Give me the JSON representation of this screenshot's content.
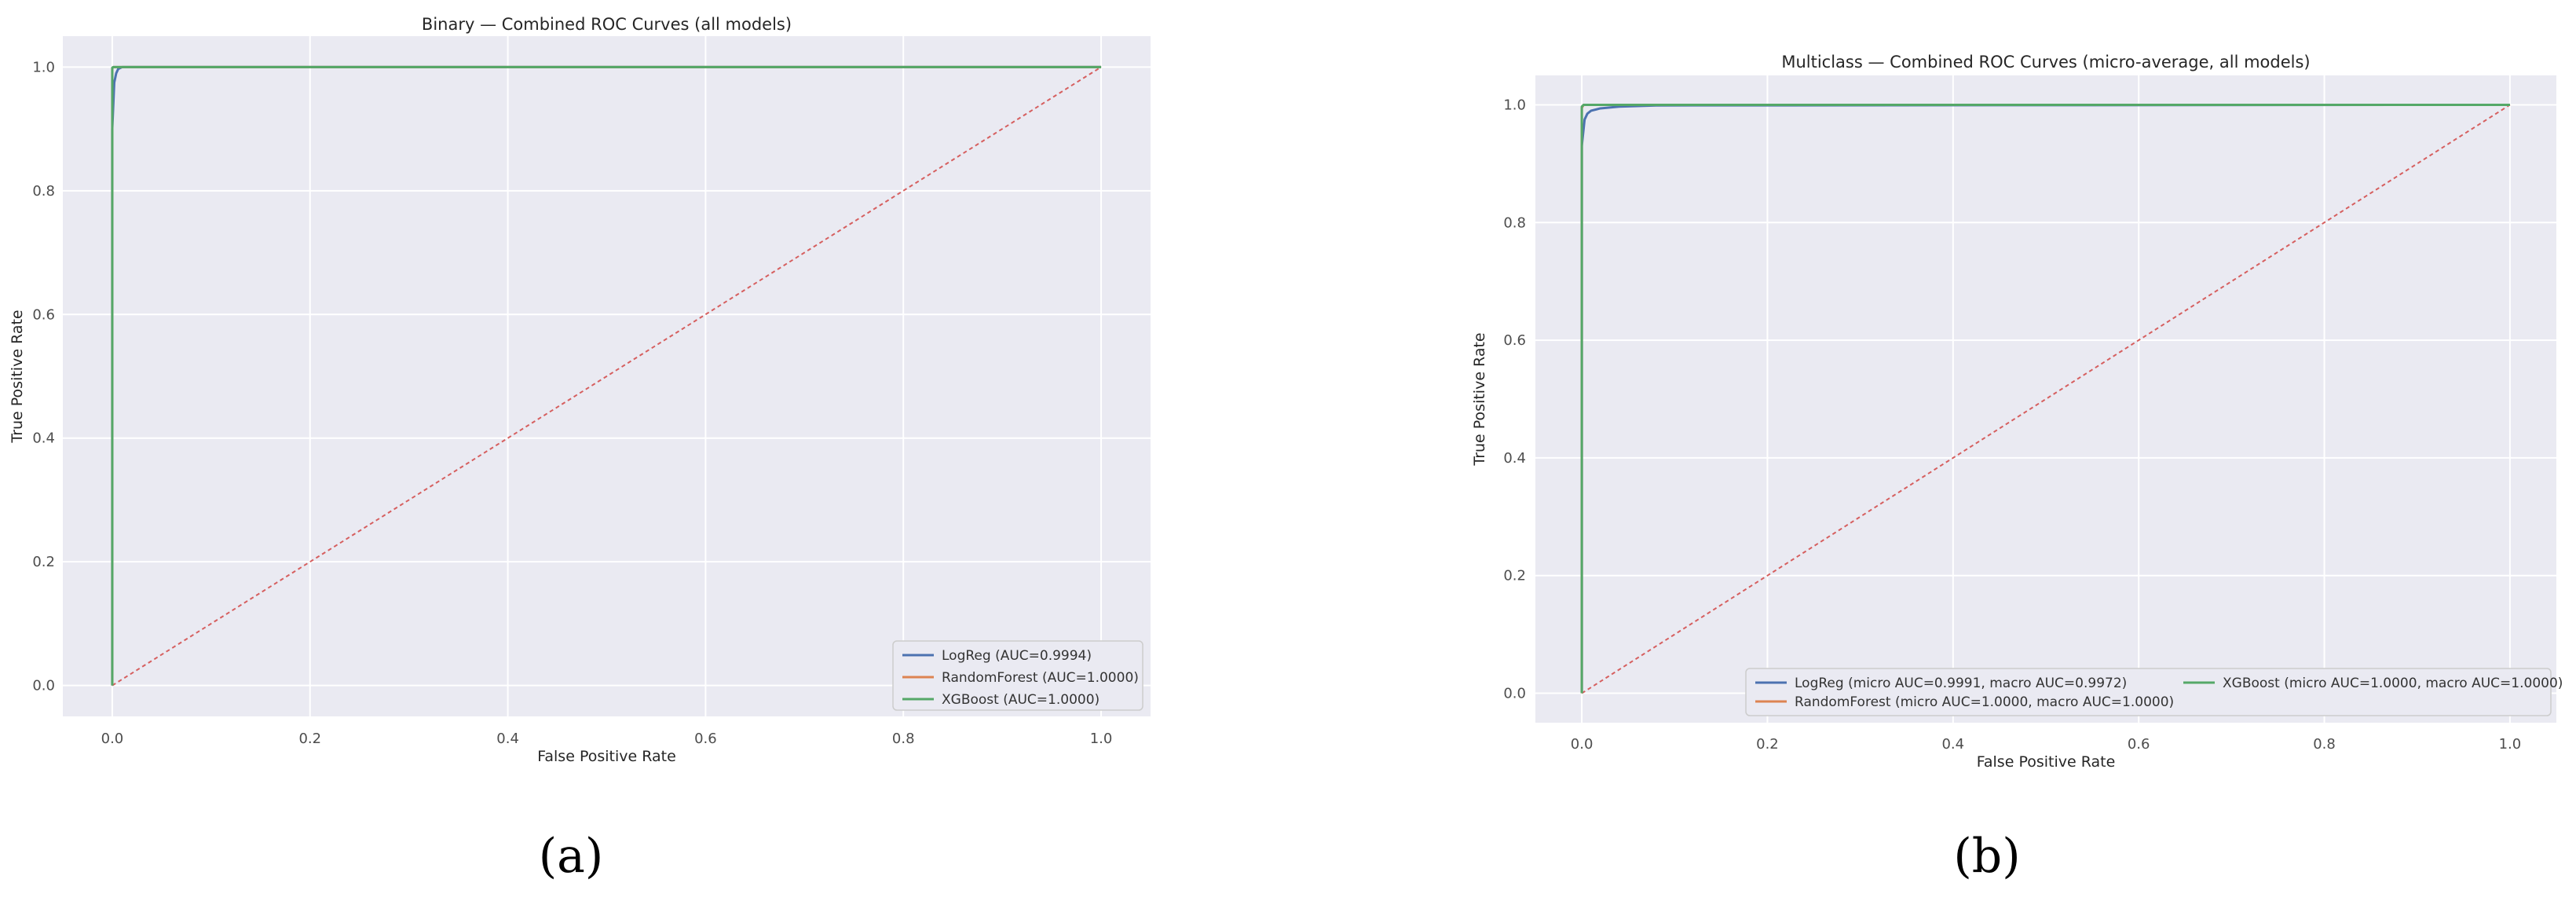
{
  "chart_data": [
    {
      "type": "line",
      "title": "Binary — Combined ROC Curves (all models)",
      "xlabel": "False Positive Rate",
      "ylabel": "True Positive Rate",
      "xlim": [
        -0.05,
        1.05
      ],
      "ylim": [
        -0.05,
        1.05
      ],
      "xticks": [
        "0.0",
        "0.2",
        "0.4",
        "0.6",
        "0.8",
        "1.0"
      ],
      "yticks": [
        "0.0",
        "0.2",
        "0.4",
        "0.6",
        "0.8",
        "1.0"
      ],
      "grid": true,
      "legend_position": "lower-right",
      "legend_columns": 1,
      "panel_label": "(a)",
      "series": [
        {
          "name": "LogReg (AUC=0.9994)",
          "color": "#4c72b0",
          "x": [
            0,
            0,
            0.002,
            0.004,
            0.006,
            0.01,
            0.02,
            1.0
          ],
          "y": [
            0,
            0.9,
            0.975,
            0.99,
            0.997,
            1.0,
            1.0,
            1.0
          ]
        },
        {
          "name": "RandomForest (AUC=1.0000)",
          "color": "#dd8452",
          "x": [
            0,
            0,
            0.001,
            1.0
          ],
          "y": [
            0,
            0.998,
            1.0,
            1.0
          ]
        },
        {
          "name": "XGBoost (AUC=1.0000)",
          "color": "#55a868",
          "x": [
            0,
            0,
            0.001,
            1.0
          ],
          "y": [
            0,
            0.999,
            1.0,
            1.0
          ]
        }
      ],
      "reference_line": {
        "color": "#d65f5f",
        "x": [
          0,
          1
        ],
        "y": [
          0,
          1
        ]
      }
    },
    {
      "type": "line",
      "title": "Multiclass — Combined ROC Curves (micro-average, all models)",
      "xlabel": "False Positive Rate",
      "ylabel": "True Positive Rate",
      "xlim": [
        -0.05,
        1.05
      ],
      "ylim": [
        -0.05,
        1.05
      ],
      "xticks": [
        "0.0",
        "0.2",
        "0.4",
        "0.6",
        "0.8",
        "1.0"
      ],
      "yticks": [
        "0.0",
        "0.2",
        "0.4",
        "0.6",
        "0.8",
        "1.0"
      ],
      "grid": true,
      "legend_position": "lower-right",
      "legend_columns": 2,
      "panel_label": "(b)",
      "series": [
        {
          "name": "LogReg (micro AUC=0.9991, macro AUC=0.9972)",
          "color": "#4c72b0",
          "x": [
            0,
            0,
            0.003,
            0.006,
            0.01,
            0.02,
            0.04,
            0.08,
            1.0
          ],
          "y": [
            0,
            0.93,
            0.975,
            0.985,
            0.99,
            0.994,
            0.997,
            0.999,
            1.0
          ]
        },
        {
          "name": "RandomForest (micro AUC=1.0000, macro AUC=1.0000)",
          "color": "#dd8452",
          "x": [
            0,
            0,
            0.002,
            1.0
          ],
          "y": [
            0,
            0.995,
            1.0,
            1.0
          ]
        },
        {
          "name": "XGBoost (micro AUC=1.0000, macro AUC=1.0000)",
          "color": "#55a868",
          "x": [
            0,
            0,
            0.002,
            1.0
          ],
          "y": [
            0,
            0.997,
            1.0,
            1.0
          ]
        }
      ],
      "reference_line": {
        "color": "#d65f5f",
        "x": [
          0,
          1
        ],
        "y": [
          0,
          1
        ]
      }
    }
  ],
  "colors": {
    "plot_background": "#eaeaf2",
    "grid": "#ffffff"
  }
}
